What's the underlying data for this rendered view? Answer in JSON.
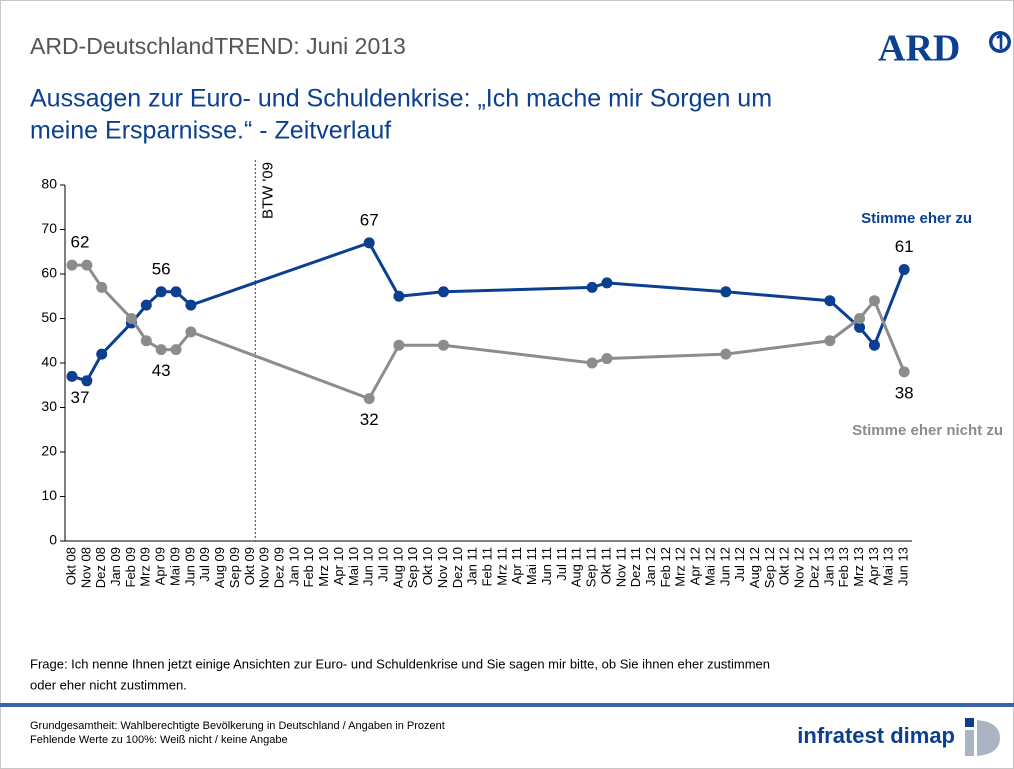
{
  "header": {
    "title": "ARD-DeutschlandTREND: Juni 2013",
    "logo": "ARD"
  },
  "chart_data": {
    "type": "line",
    "title_lines": [
      "Aussagen zur Euro- und Schuldenkrise: „Ich mache mir Sorgen um",
      "meine Ersparnisse.“ - Zeitverlauf"
    ],
    "categories": [
      "Okt 08",
      "Nov 08",
      "Dez 08",
      "Jan 09",
      "Feb 09",
      "Mrz 09",
      "Apr 09",
      "Mai 09",
      "Jun 09",
      "Jul 09",
      "Aug 09",
      "Sep 09",
      "Okt 09",
      "Nov 09",
      "Dez 09",
      "Jan 10",
      "Feb 10",
      "Mrz 10",
      "Apr 10",
      "Mai 10",
      "Jun 10",
      "Jul 10",
      "Aug 10",
      "Sep 10",
      "Okt 10",
      "Nov 10",
      "Dez 10",
      "Jan 11",
      "Feb 11",
      "Mrz 11",
      "Apr 11",
      "Mai 11",
      "Jun 11",
      "Jul 11",
      "Aug 11",
      "Sep 11",
      "Okt 11",
      "Nov 11",
      "Dez 11",
      "Jan 12",
      "Feb 12",
      "Mrz 12",
      "Apr 12",
      "Mai 12",
      "Jun 12",
      "Jul 12",
      "Aug 12",
      "Sep 12",
      "Okt 12",
      "Nov 12",
      "Dez 12",
      "Jan 13",
      "Feb 13",
      "Mrz 13",
      "Apr 13",
      "Mai 13",
      "Jun 13"
    ],
    "series": [
      {
        "name": "Stimme eher zu",
        "color": "#0b3f8f",
        "values": [
          37,
          36,
          42,
          null,
          49,
          53,
          56,
          56,
          53,
          null,
          null,
          null,
          null,
          null,
          null,
          null,
          null,
          null,
          null,
          null,
          67,
          null,
          55,
          null,
          null,
          56,
          null,
          null,
          null,
          null,
          null,
          null,
          null,
          null,
          null,
          57,
          58,
          null,
          null,
          null,
          null,
          null,
          null,
          null,
          56,
          null,
          null,
          null,
          null,
          null,
          null,
          54,
          null,
          48,
          44,
          null,
          61
        ]
      },
      {
        "name": "Stimme eher nicht zu",
        "color": "#8c8c8c",
        "values": [
          62,
          62,
          57,
          null,
          50,
          45,
          43,
          43,
          47,
          null,
          null,
          null,
          null,
          null,
          null,
          null,
          null,
          null,
          null,
          null,
          32,
          null,
          44,
          null,
          null,
          44,
          null,
          null,
          null,
          null,
          null,
          null,
          null,
          null,
          null,
          40,
          41,
          null,
          null,
          null,
          null,
          null,
          null,
          null,
          42,
          null,
          null,
          null,
          null,
          null,
          null,
          45,
          null,
          50,
          54,
          null,
          38
        ]
      }
    ],
    "span_gaps": true,
    "labels_at": [
      0,
      6,
      20,
      56
    ],
    "annotation": {
      "label": "BTW '09",
      "at": "Okt 09"
    },
    "ylim": [
      0,
      80
    ],
    "yticks": [
      0,
      10,
      20,
      30,
      40,
      50,
      60,
      70,
      80
    ]
  },
  "footer": {
    "question": [
      "Frage: Ich nenne Ihnen jetzt einige Ansichten zur Euro- und Schuldenkrise und Sie sagen mir bitte, ob Sie ihnen eher zustimmen",
      "oder eher nicht zustimmen."
    ],
    "notes": [
      "Grundgesamtheit: Wahlberechtigte Bevölkerung in Deutschland / Angaben in Prozent",
      "Fehlende Werte zu 100%: Weiß nicht / keine Angabe"
    ],
    "brand": "infratest dimap"
  }
}
